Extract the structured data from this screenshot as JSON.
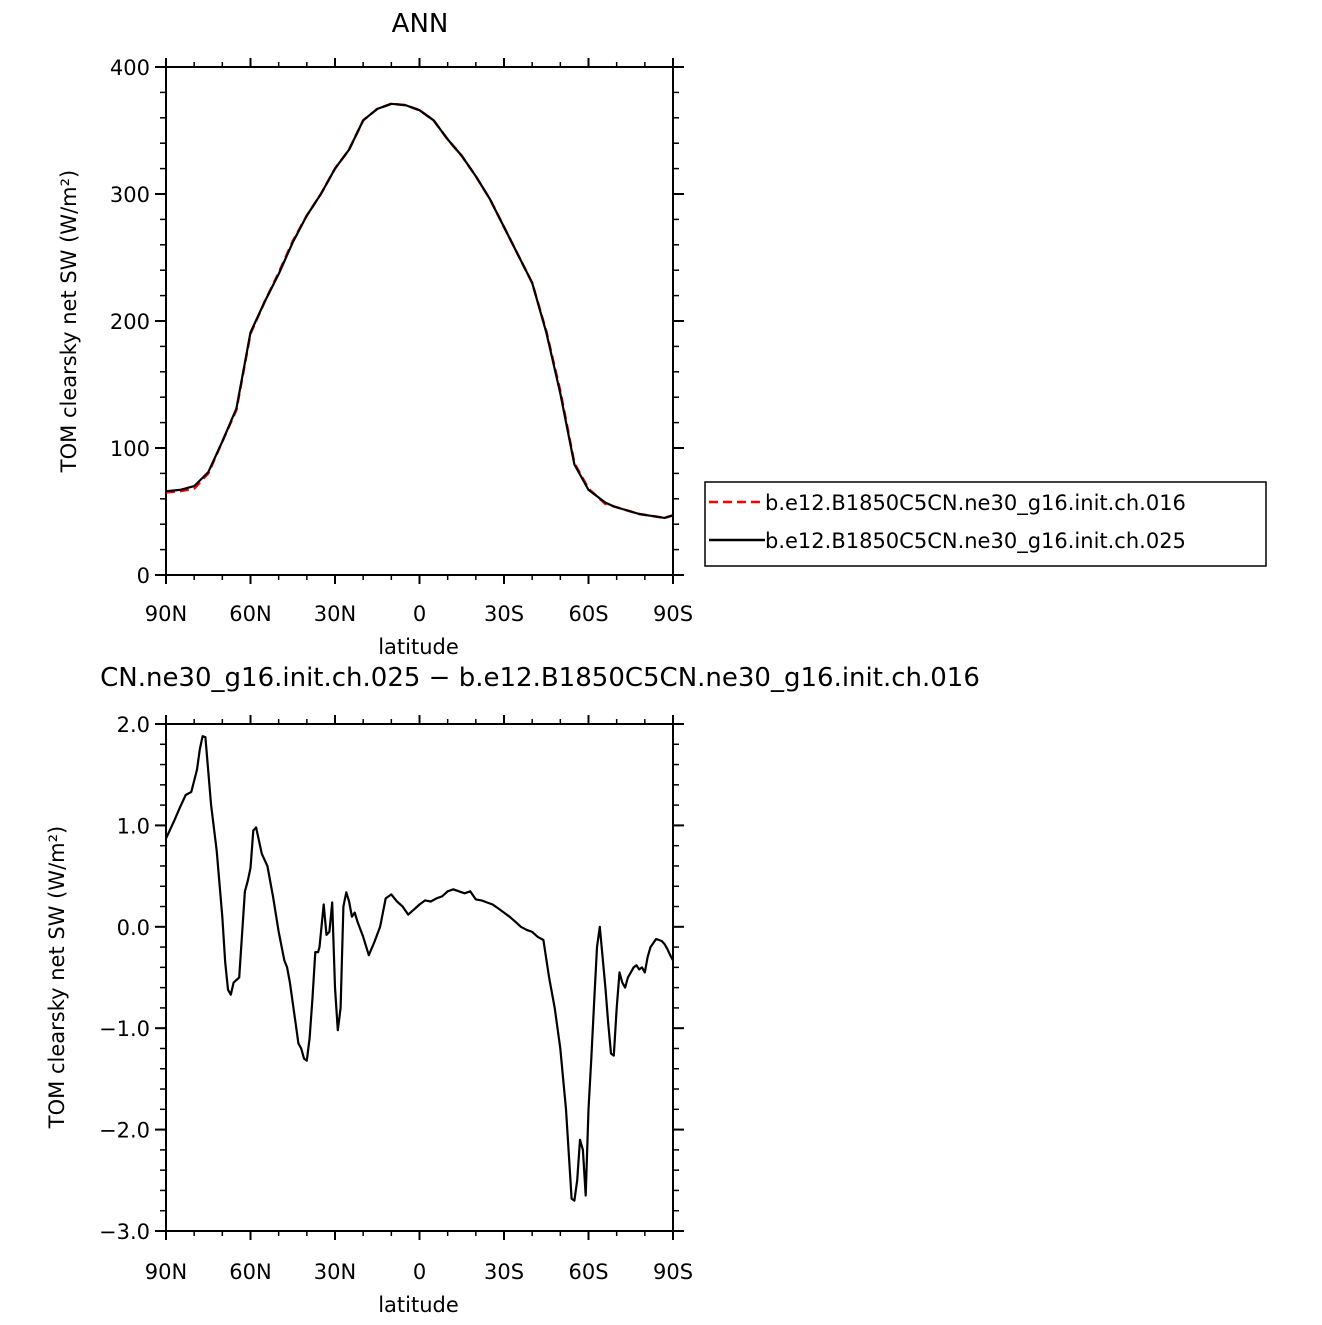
{
  "chart_data": [
    {
      "type": "line",
      "title": "ANN",
      "xlabel": "latitude",
      "ylabel": "TOM clearsky net SW (W/m²)",
      "xlim": [
        90,
        -90
      ],
      "ylim": [
        0,
        400
      ],
      "x_ticks": [
        {
          "value": 90,
          "label": "90N"
        },
        {
          "value": 60,
          "label": "60N"
        },
        {
          "value": 30,
          "label": "30N"
        },
        {
          "value": 0,
          "label": "0"
        },
        {
          "value": -30,
          "label": "30S"
        },
        {
          "value": -60,
          "label": "60S"
        },
        {
          "value": -90,
          "label": "90S"
        }
      ],
      "y_ticks": [
        {
          "value": 0,
          "label": "0"
        },
        {
          "value": 100,
          "label": "100"
        },
        {
          "value": 200,
          "label": "200"
        },
        {
          "value": 300,
          "label": "300"
        },
        {
          "value": 400,
          "label": "400"
        }
      ],
      "grid": false,
      "legend": "right",
      "x": [
        90,
        85,
        80,
        75,
        70,
        65,
        60,
        55,
        50,
        45,
        40,
        35,
        30,
        25,
        20,
        15,
        10,
        5,
        0,
        -5,
        -10,
        -15,
        -20,
        -25,
        -30,
        -35,
        -40,
        -45,
        -50,
        -55,
        -60,
        -63,
        -66,
        -69,
        -72,
        -75,
        -78,
        -81,
        -84,
        -87,
        -90
      ],
      "series": [
        {
          "name": "b.e12.B1850C5CN.ne30_g16.init.ch.016",
          "color": "#ff0000",
          "style": "dashed",
          "values": [
            65,
            66,
            68,
            80,
            105,
            130,
            190,
            215,
            238,
            263,
            283,
            300,
            320,
            335,
            358,
            367,
            371,
            370,
            366,
            358,
            343,
            330,
            314,
            296,
            274,
            252,
            230,
            192,
            145,
            88,
            68,
            62,
            56,
            54,
            52,
            50,
            48,
            47,
            46,
            45,
            47
          ]
        },
        {
          "name": "b.e12.B1850C5CN.ne30_g16.init.ch.025",
          "color": "#000000",
          "style": "solid",
          "values": [
            66,
            67,
            70,
            81,
            105,
            131,
            191,
            215,
            237,
            262,
            283,
            300,
            320,
            335,
            358,
            367,
            371,
            370,
            366,
            358,
            343,
            330,
            314,
            296,
            274,
            252,
            230,
            191,
            143,
            87,
            67,
            62,
            57,
            54,
            52,
            50,
            48,
            47,
            46,
            45,
            47
          ]
        }
      ]
    },
    {
      "type": "line",
      "title": "CN.ne30_g16.init.ch.025 − b.e12.B1850C5CN.ne30_g16.init.ch.016",
      "xlabel": "latitude",
      "ylabel": "TOM clearsky net SW (W/m²)",
      "xlim": [
        90,
        -90
      ],
      "ylim": [
        -3.0,
        2.0
      ],
      "x_ticks": [
        {
          "value": 90,
          "label": "90N"
        },
        {
          "value": 60,
          "label": "60N"
        },
        {
          "value": 30,
          "label": "30N"
        },
        {
          "value": 0,
          "label": "0"
        },
        {
          "value": -30,
          "label": "30S"
        },
        {
          "value": -60,
          "label": "60S"
        },
        {
          "value": -90,
          "label": "90S"
        }
      ],
      "y_ticks": [
        {
          "value": -3.0,
          "label": "−3.0"
        },
        {
          "value": -2.0,
          "label": "−2.0"
        },
        {
          "value": -1.0,
          "label": "−1.0"
        },
        {
          "value": 0.0,
          "label": "0.0"
        },
        {
          "value": 1.0,
          "label": "1.0"
        },
        {
          "value": 2.0,
          "label": "2.0"
        }
      ],
      "grid": false,
      "x": [
        90,
        87,
        85,
        83,
        81,
        79,
        78,
        77,
        76,
        74,
        72,
        70,
        69,
        68,
        67,
        66,
        64,
        62,
        61,
        60,
        59,
        58,
        56,
        54,
        52,
        50,
        48,
        47,
        46,
        44,
        43,
        42,
        41,
        40,
        39,
        38,
        37,
        36,
        35.5,
        34,
        33,
        32,
        31,
        30,
        29,
        28,
        27,
        26,
        25,
        24,
        23,
        22,
        20,
        18,
        16,
        14,
        12,
        10,
        8,
        6,
        4,
        2,
        0,
        -2,
        -4,
        -6,
        -8,
        -10,
        -12,
        -14,
        -16,
        -18,
        -20,
        -22,
        -24,
        -26,
        -28,
        -30,
        -32,
        -34,
        -36,
        -38,
        -40,
        -42,
        -44,
        -46,
        -48,
        -50,
        -52,
        -54,
        -55,
        -56,
        -57,
        -58,
        -59,
        -60,
        -61,
        -62,
        -63,
        -64,
        -65,
        -66,
        -67,
        -68,
        -69,
        -70,
        -71,
        -72,
        -73,
        -74,
        -75,
        -76,
        -77,
        -78,
        -79,
        -80,
        -81,
        -82,
        -84,
        -86,
        -87,
        -88,
        -89,
        -90
      ],
      "series": [
        {
          "values": [
            0.87,
            1.05,
            1.18,
            1.3,
            1.33,
            1.55,
            1.75,
            1.88,
            1.87,
            1.2,
            0.75,
            0.1,
            -0.35,
            -0.62,
            -0.67,
            -0.55,
            -0.5,
            0.35,
            0.45,
            0.58,
            0.95,
            0.98,
            0.72,
            0.6,
            0.3,
            -0.05,
            -0.33,
            -0.4,
            -0.55,
            -0.95,
            -1.15,
            -1.2,
            -1.3,
            -1.32,
            -1.1,
            -0.7,
            -0.25,
            -0.25,
            -0.2,
            0.22,
            -0.08,
            -0.05,
            0.24,
            -0.6,
            -1.02,
            -0.8,
            0.2,
            0.34,
            0.25,
            0.1,
            0.14,
            0.05,
            -0.1,
            -0.28,
            -0.15,
            0.0,
            0.28,
            0.32,
            0.25,
            0.2,
            0.12,
            0.17,
            0.22,
            0.26,
            0.25,
            0.28,
            0.3,
            0.35,
            0.37,
            0.35,
            0.33,
            0.35,
            0.27,
            0.26,
            0.24,
            0.22,
            0.18,
            0.14,
            0.1,
            0.05,
            0.0,
            -0.03,
            -0.05,
            -0.1,
            -0.13,
            -0.5,
            -0.8,
            -1.2,
            -1.8,
            -2.68,
            -2.7,
            -2.5,
            -2.1,
            -2.2,
            -2.65,
            -1.8,
            -1.3,
            -0.75,
            -0.2,
            0.0,
            -0.3,
            -0.6,
            -0.95,
            -1.25,
            -1.27,
            -0.8,
            -0.45,
            -0.55,
            -0.6,
            -0.5,
            -0.45,
            -0.4,
            -0.38,
            -0.42,
            -0.4,
            -0.45,
            -0.3,
            -0.2,
            -0.12,
            -0.14,
            -0.17,
            -0.22,
            -0.28,
            -0.33
          ],
          "color": "#000000",
          "style": "solid"
        }
      ]
    }
  ]
}
